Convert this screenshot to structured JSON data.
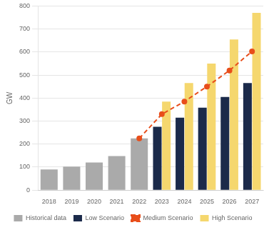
{
  "chart_data": {
    "type": "bar",
    "categories": [
      "2018",
      "2019",
      "2020",
      "2021",
      "2022",
      "2023",
      "2024",
      "2025",
      "2026",
      "2027"
    ],
    "series": [
      {
        "name": "Historical data",
        "color": "#aaaaaa",
        "type": "bar",
        "values": [
          90,
          102,
          120,
          148,
          225,
          null,
          null,
          null,
          null,
          null
        ]
      },
      {
        "name": "Low Scenario",
        "color": "#1b2a4a",
        "type": "bar",
        "values": [
          null,
          null,
          null,
          null,
          null,
          275,
          315,
          358,
          405,
          465
        ]
      },
      {
        "name": "Medium Scenario",
        "color": "#e84e1b",
        "type": "line",
        "line_style": "dashed",
        "marker": "circle",
        "values": [
          null,
          null,
          null,
          null,
          225,
          330,
          385,
          450,
          520,
          603
        ]
      },
      {
        "name": "High Scenario",
        "color": "#f5d76e",
        "type": "bar",
        "values": [
          null,
          null,
          null,
          null,
          null,
          385,
          465,
          550,
          655,
          770
        ]
      }
    ],
    "ylabel": "GW",
    "ylim": [
      0,
      800
    ],
    "yticks": [
      0,
      100,
      200,
      300,
      400,
      500,
      600,
      700,
      800
    ],
    "grid": true,
    "legend": "bottom"
  }
}
